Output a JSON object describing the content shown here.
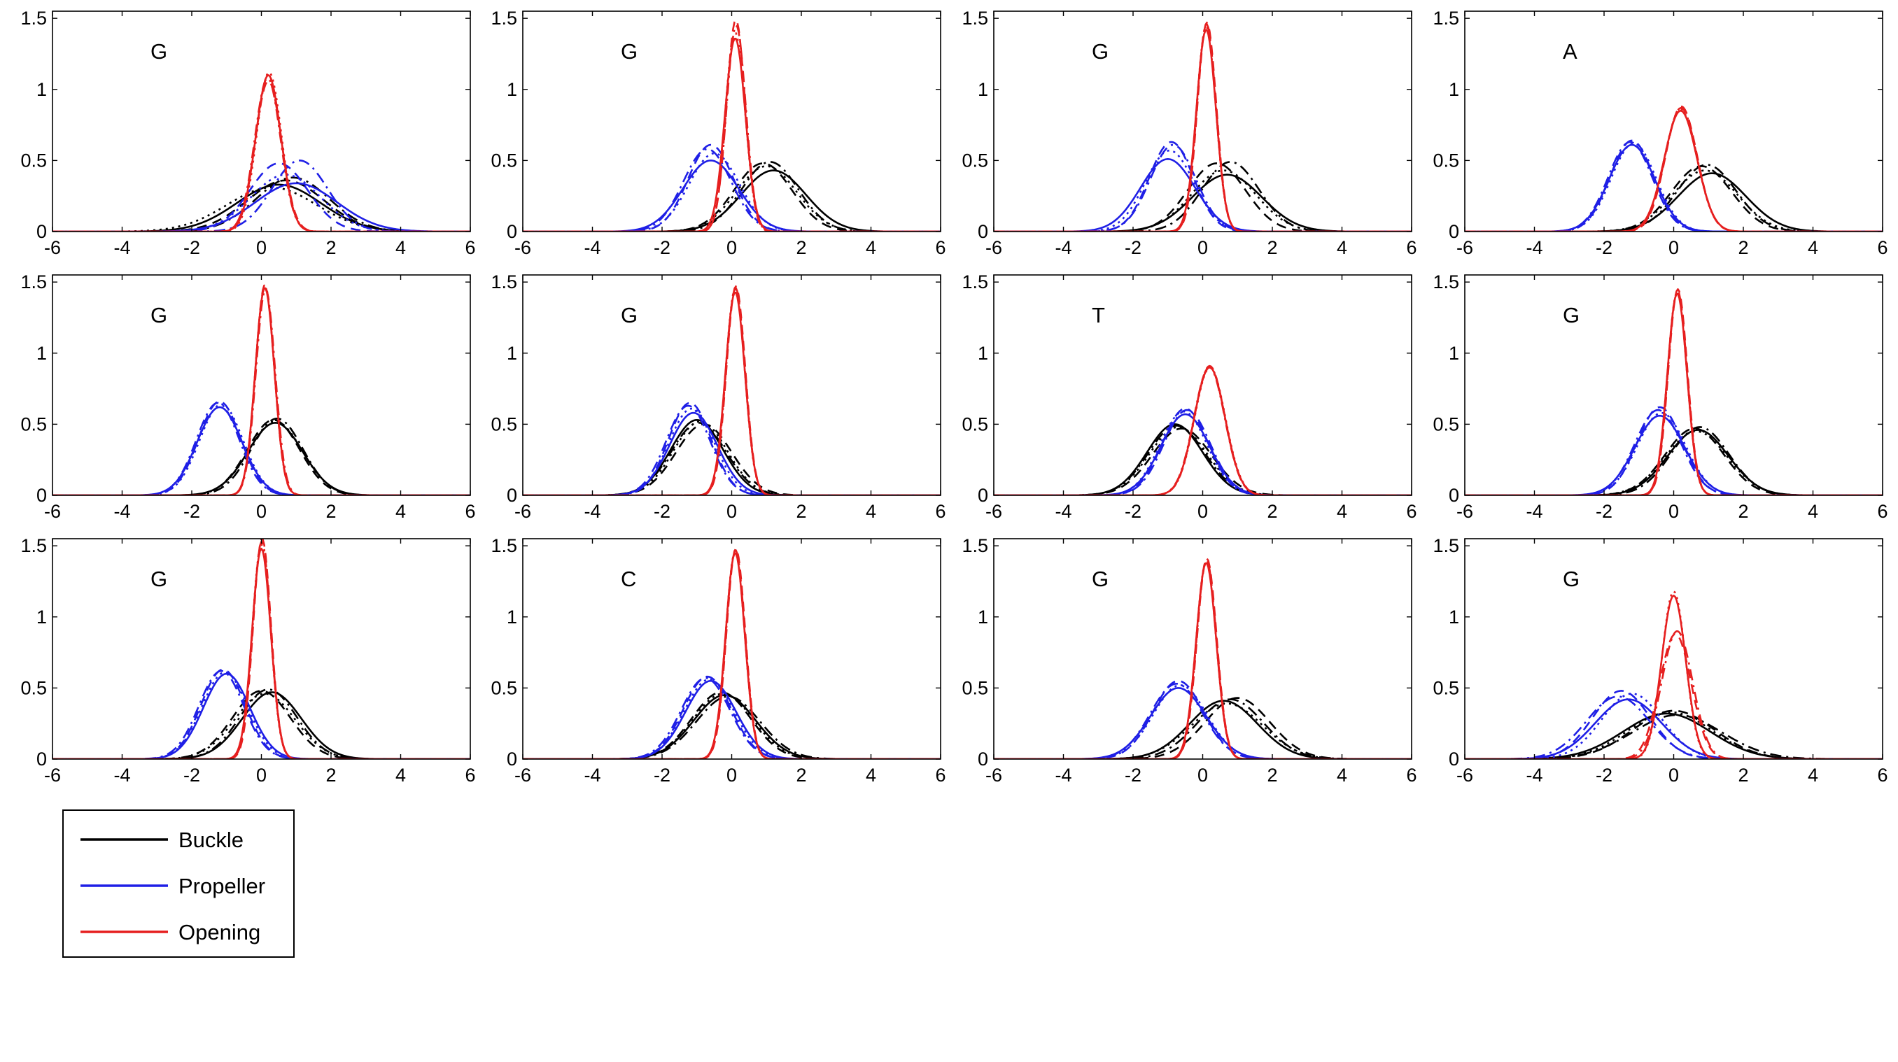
{
  "colors": {
    "Buckle": "#000000",
    "Propeller": "#1f1fe6",
    "Opening": "#e61f1f"
  },
  "legend": {
    "placement": "bottom-left",
    "entries": [
      {
        "name": "Buckle",
        "label": "Buckle",
        "color": "#000000"
      },
      {
        "name": "Propeller",
        "label": "Propeller",
        "color": "#1f1fe6"
      },
      {
        "name": "Opening",
        "label": "Opening",
        "color": "#e61f1f"
      }
    ]
  },
  "chart_data": {
    "type": "line",
    "layout": {
      "rows": 3,
      "cols": 4
    },
    "xlim": [
      -6,
      6
    ],
    "ylim": [
      0,
      1.55
    ],
    "xticks": [
      "-6",
      "-4",
      "-2",
      "0",
      "2",
      "4",
      "6"
    ],
    "yticks": [
      "0",
      "0.5",
      "1",
      "1.5"
    ],
    "grid": false,
    "line_styles": [
      "solid",
      "dashed",
      "dotted",
      "dashdot"
    ],
    "panels": [
      {
        "label": "G",
        "series": [
          {
            "name": "Buckle",
            "variants": [
              {
                "mean": 0.5,
                "peak": 0.33
              },
              {
                "mean": 0.7,
                "peak": 0.36
              },
              {
                "mean": 0.3,
                "peak": 0.31
              },
              {
                "mean": 0.9,
                "peak": 0.38
              }
            ]
          },
          {
            "name": "Propeller",
            "variants": [
              {
                "mean": 1.0,
                "peak": 0.34
              },
              {
                "mean": 0.5,
                "peak": 0.48
              },
              {
                "mean": 0.7,
                "peak": 0.4
              },
              {
                "mean": 1.1,
                "peak": 0.5
              }
            ]
          },
          {
            "name": "Opening",
            "variants": [
              {
                "mean": 0.2,
                "peak": 1.1
              },
              {
                "mean": 0.2,
                "peak": 1.06
              },
              {
                "mean": 0.22,
                "peak": 1.12
              },
              {
                "mean": 0.18,
                "peak": 1.08
              }
            ]
          }
        ]
      },
      {
        "label": "G",
        "series": [
          {
            "name": "Buckle",
            "variants": [
              {
                "mean": 1.2,
                "peak": 0.43
              },
              {
                "mean": 0.9,
                "peak": 0.48
              },
              {
                "mean": 1.0,
                "peak": 0.46
              },
              {
                "mean": 1.1,
                "peak": 0.49
              }
            ]
          },
          {
            "name": "Propeller",
            "variants": [
              {
                "mean": -0.6,
                "peak": 0.5
              },
              {
                "mean": -0.6,
                "peak": 0.61
              },
              {
                "mean": -0.5,
                "peak": 0.55
              },
              {
                "mean": -0.7,
                "peak": 0.58
              }
            ]
          },
          {
            "name": "Opening",
            "variants": [
              {
                "mean": 0.1,
                "peak": 1.36
              },
              {
                "mean": 0.12,
                "peak": 1.49
              },
              {
                "mean": 0.1,
                "peak": 1.4
              },
              {
                "mean": 0.13,
                "peak": 1.45
              }
            ]
          }
        ]
      },
      {
        "label": "G",
        "series": [
          {
            "name": "Buckle",
            "variants": [
              {
                "mean": 0.7,
                "peak": 0.4
              },
              {
                "mean": 0.4,
                "peak": 0.48
              },
              {
                "mean": 0.6,
                "peak": 0.43
              },
              {
                "mean": 0.8,
                "peak": 0.49
              }
            ]
          },
          {
            "name": "Propeller",
            "variants": [
              {
                "mean": -1.0,
                "peak": 0.51
              },
              {
                "mean": -0.9,
                "peak": 0.63
              },
              {
                "mean": -0.95,
                "peak": 0.57
              },
              {
                "mean": -0.85,
                "peak": 0.61
              }
            ]
          },
          {
            "name": "Opening",
            "variants": [
              {
                "mean": 0.1,
                "peak": 1.42
              },
              {
                "mean": 0.12,
                "peak": 1.47
              },
              {
                "mean": 0.1,
                "peak": 1.44
              },
              {
                "mean": 0.11,
                "peak": 1.46
              }
            ]
          }
        ]
      },
      {
        "label": "A",
        "series": [
          {
            "name": "Buckle",
            "variants": [
              {
                "mean": 1.1,
                "peak": 0.41
              },
              {
                "mean": 0.8,
                "peak": 0.46
              },
              {
                "mean": 0.9,
                "peak": 0.43
              },
              {
                "mean": 0.95,
                "peak": 0.47
              }
            ]
          },
          {
            "name": "Propeller",
            "variants": [
              {
                "mean": -1.2,
                "peak": 0.61
              },
              {
                "mean": -1.2,
                "peak": 0.64
              },
              {
                "mean": -1.15,
                "peak": 0.62
              },
              {
                "mean": -1.25,
                "peak": 0.63
              }
            ]
          },
          {
            "name": "Opening",
            "variants": [
              {
                "mean": 0.2,
                "peak": 0.85
              },
              {
                "mean": 0.22,
                "peak": 0.88
              },
              {
                "mean": 0.2,
                "peak": 0.86
              },
              {
                "mean": 0.21,
                "peak": 0.87
              }
            ]
          }
        ]
      },
      {
        "label": "G",
        "series": [
          {
            "name": "Buckle",
            "variants": [
              {
                "mean": 0.4,
                "peak": 0.51
              },
              {
                "mean": 0.35,
                "peak": 0.53
              },
              {
                "mean": 0.4,
                "peak": 0.52
              },
              {
                "mean": 0.45,
                "peak": 0.54
              }
            ]
          },
          {
            "name": "Propeller",
            "variants": [
              {
                "mean": -1.2,
                "peak": 0.62
              },
              {
                "mean": -1.2,
                "peak": 0.66
              },
              {
                "mean": -1.15,
                "peak": 0.64
              },
              {
                "mean": -1.25,
                "peak": 0.65
              }
            ]
          },
          {
            "name": "Opening",
            "variants": [
              {
                "mean": 0.1,
                "peak": 1.46
              },
              {
                "mean": 0.1,
                "peak": 1.48
              },
              {
                "mean": 0.1,
                "peak": 1.47
              },
              {
                "mean": 0.12,
                "peak": 1.45
              }
            ]
          }
        ]
      },
      {
        "label": "G",
        "series": [
          {
            "name": "Buckle",
            "variants": [
              {
                "mean": -1.0,
                "peak": 0.53
              },
              {
                "mean": -0.8,
                "peak": 0.5
              },
              {
                "mean": -0.9,
                "peak": 0.52
              },
              {
                "mean": -0.95,
                "peak": 0.51
              }
            ]
          },
          {
            "name": "Propeller",
            "variants": [
              {
                "mean": -1.1,
                "peak": 0.58
              },
              {
                "mean": -1.2,
                "peak": 0.65
              },
              {
                "mean": -1.15,
                "peak": 0.61
              },
              {
                "mean": -1.25,
                "peak": 0.63
              }
            ]
          },
          {
            "name": "Opening",
            "variants": [
              {
                "mean": 0.1,
                "peak": 1.43
              },
              {
                "mean": 0.12,
                "peak": 1.47
              },
              {
                "mean": 0.1,
                "peak": 1.45
              },
              {
                "mean": 0.11,
                "peak": 1.46
              }
            ]
          }
        ]
      },
      {
        "label": "T",
        "series": [
          {
            "name": "Buckle",
            "variants": [
              {
                "mean": -0.8,
                "peak": 0.5
              },
              {
                "mean": -0.6,
                "peak": 0.47
              },
              {
                "mean": -0.7,
                "peak": 0.48
              },
              {
                "mean": -0.75,
                "peak": 0.49
              }
            ]
          },
          {
            "name": "Propeller",
            "variants": [
              {
                "mean": -0.5,
                "peak": 0.57
              },
              {
                "mean": -0.5,
                "peak": 0.61
              },
              {
                "mean": -0.55,
                "peak": 0.59
              },
              {
                "mean": -0.45,
                "peak": 0.6
              }
            ]
          },
          {
            "name": "Opening",
            "variants": [
              {
                "mean": 0.2,
                "peak": 0.9
              },
              {
                "mean": 0.2,
                "peak": 0.91
              },
              {
                "mean": 0.21,
                "peak": 0.9
              },
              {
                "mean": 0.19,
                "peak": 0.9
              }
            ]
          }
        ]
      },
      {
        "label": "G",
        "series": [
          {
            "name": "Buckle",
            "variants": [
              {
                "mean": 0.7,
                "peak": 0.46
              },
              {
                "mean": 0.6,
                "peak": 0.47
              },
              {
                "mean": 0.65,
                "peak": 0.45
              },
              {
                "mean": 0.75,
                "peak": 0.48
              }
            ]
          },
          {
            "name": "Propeller",
            "variants": [
              {
                "mean": -0.4,
                "peak": 0.56
              },
              {
                "mean": -0.4,
                "peak": 0.62
              },
              {
                "mean": -0.35,
                "peak": 0.58
              },
              {
                "mean": -0.45,
                "peak": 0.6
              }
            ]
          },
          {
            "name": "Opening",
            "variants": [
              {
                "mean": 0.1,
                "peak": 1.42
              },
              {
                "mean": 0.12,
                "peak": 1.45
              },
              {
                "mean": 0.1,
                "peak": 1.43
              },
              {
                "mean": 0.11,
                "peak": 1.44
              }
            ]
          }
        ]
      },
      {
        "label": "G",
        "series": [
          {
            "name": "Buckle",
            "variants": [
              {
                "mean": 0.3,
                "peak": 0.47
              },
              {
                "mean": 0.0,
                "peak": 0.48
              },
              {
                "mean": 0.1,
                "peak": 0.46
              },
              {
                "mean": 0.2,
                "peak": 0.49
              }
            ]
          },
          {
            "name": "Propeller",
            "variants": [
              {
                "mean": -1.0,
                "peak": 0.6
              },
              {
                "mean": -1.1,
                "peak": 0.63
              },
              {
                "mean": -1.05,
                "peak": 0.61
              },
              {
                "mean": -1.15,
                "peak": 0.62
              }
            ]
          },
          {
            "name": "Opening",
            "variants": [
              {
                "mean": 0.0,
                "peak": 1.48
              },
              {
                "mean": 0.02,
                "peak": 1.55
              },
              {
                "mean": 0.0,
                "peak": 1.51
              },
              {
                "mean": 0.01,
                "peak": 1.53
              }
            ]
          }
        ]
      },
      {
        "label": "C",
        "series": [
          {
            "name": "Buckle",
            "variants": [
              {
                "mean": -0.2,
                "peak": 0.45
              },
              {
                "mean": -0.3,
                "peak": 0.47
              },
              {
                "mean": -0.25,
                "peak": 0.46
              },
              {
                "mean": -0.1,
                "peak": 0.44
              }
            ]
          },
          {
            "name": "Propeller",
            "variants": [
              {
                "mean": -0.6,
                "peak": 0.55
              },
              {
                "mean": -0.7,
                "peak": 0.58
              },
              {
                "mean": -0.65,
                "peak": 0.56
              },
              {
                "mean": -0.75,
                "peak": 0.57
              }
            ]
          },
          {
            "name": "Opening",
            "variants": [
              {
                "mean": 0.1,
                "peak": 1.45
              },
              {
                "mean": 0.12,
                "peak": 1.48
              },
              {
                "mean": 0.1,
                "peak": 1.46
              },
              {
                "mean": 0.11,
                "peak": 1.47
              }
            ]
          }
        ]
      },
      {
        "label": "G",
        "series": [
          {
            "name": "Buckle",
            "variants": [
              {
                "mean": 0.6,
                "peak": 0.41
              },
              {
                "mean": 1.0,
                "peak": 0.43
              },
              {
                "mean": 0.7,
                "peak": 0.39
              },
              {
                "mean": 0.8,
                "peak": 0.42
              }
            ]
          },
          {
            "name": "Propeller",
            "variants": [
              {
                "mean": -0.7,
                "peak": 0.5
              },
              {
                "mean": -0.7,
                "peak": 0.55
              },
              {
                "mean": -0.65,
                "peak": 0.52
              },
              {
                "mean": -0.75,
                "peak": 0.53
              }
            ]
          },
          {
            "name": "Opening",
            "variants": [
              {
                "mean": 0.1,
                "peak": 1.38
              },
              {
                "mean": 0.12,
                "peak": 1.41
              },
              {
                "mean": 0.1,
                "peak": 1.39
              },
              {
                "mean": 0.11,
                "peak": 1.4
              }
            ]
          }
        ]
      },
      {
        "label": "G",
        "series": [
          {
            "name": "Buckle",
            "variants": [
              {
                "mean": -0.2,
                "peak": 0.32
              },
              {
                "mean": 0.0,
                "peak": 0.34
              },
              {
                "mean": -0.1,
                "peak": 0.33
              },
              {
                "mean": 0.1,
                "peak": 0.31
              }
            ]
          },
          {
            "name": "Propeller",
            "variants": [
              {
                "mean": -1.3,
                "peak": 0.42
              },
              {
                "mean": -1.5,
                "peak": 0.48
              },
              {
                "mean": -1.2,
                "peak": 0.46
              },
              {
                "mean": -1.6,
                "peak": 0.44
              }
            ]
          },
          {
            "name": "Opening",
            "variants": [
              {
                "mean": 0.0,
                "peak": 1.15
              },
              {
                "mean": 0.05,
                "peak": 0.88
              },
              {
                "mean": 0.0,
                "peak": 1.18
              },
              {
                "mean": 0.1,
                "peak": 0.9
              }
            ]
          }
        ]
      }
    ]
  }
}
